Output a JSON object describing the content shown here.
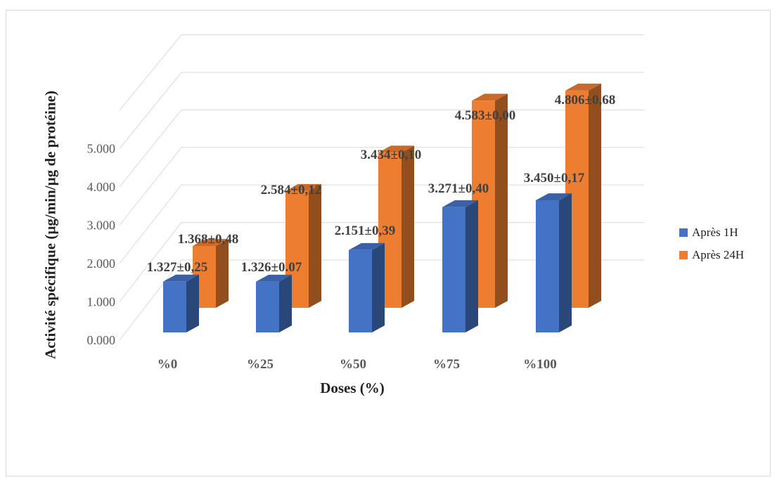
{
  "chart_data": {
    "type": "bar",
    "subtype": "3d-clustered-column",
    "categories": [
      "%0",
      "%25",
      "%50",
      "%75",
      "%100"
    ],
    "series": [
      {
        "name": "Après 1H",
        "color": "#4472C4",
        "values": [
          1.327,
          1.326,
          2.151,
          3.271,
          3.45
        ],
        "labels": [
          "1.327±0,25",
          "1.326±0.07",
          "2.151±0,39",
          "3.271±0,40",
          "3.450±0,17"
        ]
      },
      {
        "name": "Après 24H",
        "color": "#ED7D31",
        "values": [
          1.368,
          2.584,
          3.434,
          4.583,
          4.806
        ],
        "labels": [
          "1.368±0,48",
          "2.584±0,12",
          "3.434±0,10",
          "4.583±0,00",
          "4.806±0,68"
        ]
      }
    ],
    "yticks": [
      "0.000",
      "1.000",
      "2.000",
      "3.000",
      "4.000",
      "5.000"
    ],
    "ylim": [
      0,
      6
    ],
    "xlabel": "Doses (%)",
    "ylabel": "Activité spécifique (µg/min/µg de protéine)",
    "legend_position": "right",
    "grid": true
  }
}
